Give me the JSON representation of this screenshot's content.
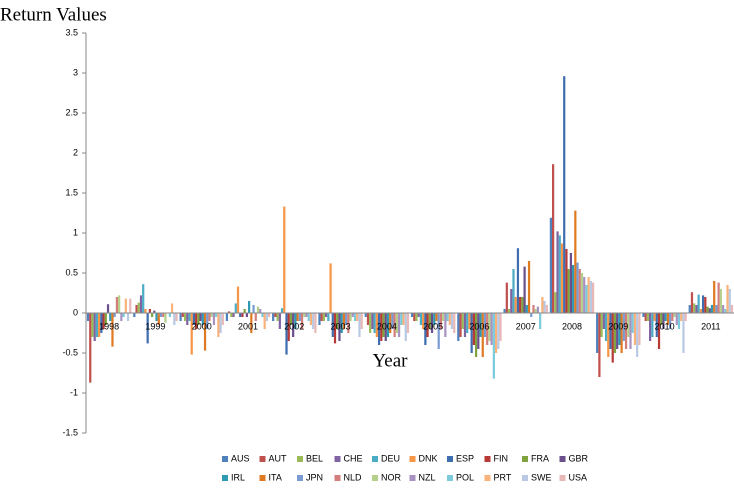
{
  "chart_data": {
    "type": "bar",
    "title": "Return Values",
    "x_label": "Year",
    "categories": [
      "1998",
      "1999",
      "2000",
      "2001",
      "2002",
      "2003",
      "2004",
      "2005",
      "2006",
      "2007",
      "2008",
      "2009",
      "2010",
      "2011"
    ],
    "ylim": [
      -1.5,
      3.5
    ],
    "yticks": [
      -1.5,
      -1,
      -0.5,
      0,
      0.5,
      1,
      1.5,
      2,
      2.5,
      3,
      3.5
    ],
    "grid": false,
    "legend": "bottom",
    "series": [
      {
        "name": "AUS",
        "color": "#4F81BD",
        "values": [
          -0.1,
          -0.05,
          -0.1,
          -0.1,
          -0.1,
          -0.15,
          -0.05,
          -0.05,
          -0.35,
          0.05,
          1.19,
          -0.5,
          -0.05,
          0.1
        ]
      },
      {
        "name": "AUT",
        "color": "#C0504D",
        "values": [
          -0.87,
          0.1,
          -0.05,
          0.02,
          -0.05,
          -0.1,
          -0.15,
          -0.1,
          -0.3,
          0.38,
          1.86,
          -0.8,
          -0.1,
          0.26
        ]
      },
      {
        "name": "BEL",
        "color": "#9BBB59",
        "values": [
          -0.3,
          0.13,
          -0.1,
          -0.05,
          -0.1,
          -0.1,
          -0.25,
          -0.1,
          -0.2,
          0.05,
          0.26,
          -0.3,
          -0.1,
          0.12
        ]
      },
      {
        "name": "CHE",
        "color": "#8064A2",
        "values": [
          -0.35,
          0.22,
          -0.15,
          -0.05,
          -0.2,
          -0.05,
          -0.2,
          -0.05,
          -0.3,
          0.3,
          1.02,
          -0.2,
          -0.35,
          0.1
        ]
      },
      {
        "name": "DEU",
        "color": "#4BACC6",
        "values": [
          -0.3,
          0.36,
          -0.1,
          0.12,
          0.06,
          -0.1,
          -0.25,
          -0.15,
          -0.25,
          0.55,
          0.97,
          -0.35,
          -0.3,
          0.23
        ]
      },
      {
        "name": "DNK",
        "color": "#F79646",
        "values": [
          -0.3,
          0.05,
          -0.52,
          0.33,
          1.33,
          0.62,
          -0.3,
          -0.2,
          -0.2,
          0.2,
          0.87,
          -0.55,
          -0.1,
          0.05
        ]
      },
      {
        "name": "ESP",
        "color": "#3E6DB0",
        "values": [
          -0.25,
          -0.38,
          -0.15,
          -0.05,
          -0.52,
          -0.3,
          -0.4,
          -0.4,
          -0.5,
          0.81,
          2.96,
          -0.45,
          -0.3,
          0.22
        ]
      },
      {
        "name": "FIN",
        "color": "#B73A37",
        "values": [
          -0.2,
          0.05,
          -0.2,
          -0.05,
          -0.35,
          -0.38,
          -0.35,
          -0.3,
          -0.4,
          0.2,
          0.8,
          -0.62,
          -0.45,
          0.2
        ]
      },
      {
        "name": "FRA",
        "color": "#7FA33E",
        "values": [
          -0.15,
          -0.05,
          -0.15,
          0.05,
          -0.15,
          -0.2,
          -0.3,
          -0.2,
          -0.55,
          0.2,
          0.55,
          -0.5,
          -0.15,
          0.08
        ]
      },
      {
        "name": "GBR",
        "color": "#6A4F8C",
        "values": [
          0.11,
          0.03,
          -0.1,
          -0.05,
          -0.3,
          -0.35,
          -0.35,
          -0.25,
          -0.45,
          0.58,
          0.75,
          -0.45,
          -0.2,
          0.06
        ]
      },
      {
        "name": "IRL",
        "color": "#2E9AB4",
        "values": [
          -0.1,
          -0.1,
          -0.15,
          0.15,
          -0.2,
          -0.25,
          -0.3,
          -0.15,
          -0.3,
          0.1,
          0.6,
          -0.4,
          -0.1,
          0.1
        ]
      },
      {
        "name": "ITA",
        "color": "#E07A22",
        "values": [
          -0.42,
          -0.15,
          -0.47,
          -0.25,
          -0.1,
          -0.2,
          -0.25,
          -0.1,
          -0.55,
          0.65,
          1.28,
          -0.5,
          -0.15,
          0.4
        ]
      },
      {
        "name": "JPN",
        "color": "#7A9CD2",
        "values": [
          -0.05,
          -0.05,
          -0.2,
          0.1,
          -0.1,
          -0.15,
          -0.2,
          -0.45,
          -0.3,
          -0.05,
          0.63,
          -0.35,
          -0.2,
          0.1
        ]
      },
      {
        "name": "NLD",
        "color": "#D47E7C",
        "values": [
          0.2,
          -0.05,
          -0.1,
          -0.1,
          -0.2,
          -0.25,
          -0.3,
          -0.2,
          -0.4,
          0.1,
          0.55,
          -0.45,
          -0.1,
          0.38
        ]
      },
      {
        "name": "NOR",
        "color": "#B5D08A",
        "values": [
          0.22,
          -0.12,
          -0.05,
          0.08,
          -0.05,
          -0.1,
          -0.25,
          -0.1,
          -0.35,
          0.05,
          0.5,
          -0.3,
          -0.05,
          0.3
        ]
      },
      {
        "name": "NZL",
        "color": "#A792C2",
        "values": [
          -0.1,
          0.0,
          -0.15,
          0.05,
          -0.05,
          -0.05,
          -0.3,
          -0.3,
          -0.4,
          0.08,
          0.45,
          -0.45,
          -0.15,
          0.1
        ]
      },
      {
        "name": "POL",
        "color": "#7BCBDD",
        "values": [
          -0.05,
          -0.05,
          -0.05,
          -0.05,
          -0.1,
          -0.1,
          -0.15,
          -0.1,
          -0.82,
          -0.2,
          0.35,
          -0.25,
          -0.2,
          0.05
        ]
      },
      {
        "name": "PRT",
        "color": "#F9B27A",
        "values": [
          0.18,
          0.12,
          -0.3,
          -0.2,
          -0.15,
          -0.1,
          -0.15,
          -0.15,
          -0.5,
          0.2,
          0.45,
          -0.4,
          -0.1,
          0.35
        ]
      },
      {
        "name": "SWE",
        "color": "#B9C9E4",
        "values": [
          -0.1,
          -0.15,
          -0.25,
          -0.1,
          -0.2,
          -0.3,
          -0.35,
          -0.2,
          -0.45,
          0.15,
          0.4,
          -0.55,
          -0.5,
          0.3
        ]
      },
      {
        "name": "USA",
        "color": "#E8B8B7",
        "values": [
          0.18,
          -0.1,
          -0.15,
          -0.05,
          -0.25,
          -0.2,
          -0.25,
          -0.25,
          -0.35,
          0.1,
          0.38,
          -0.4,
          -0.1,
          0.1
        ]
      }
    ]
  }
}
